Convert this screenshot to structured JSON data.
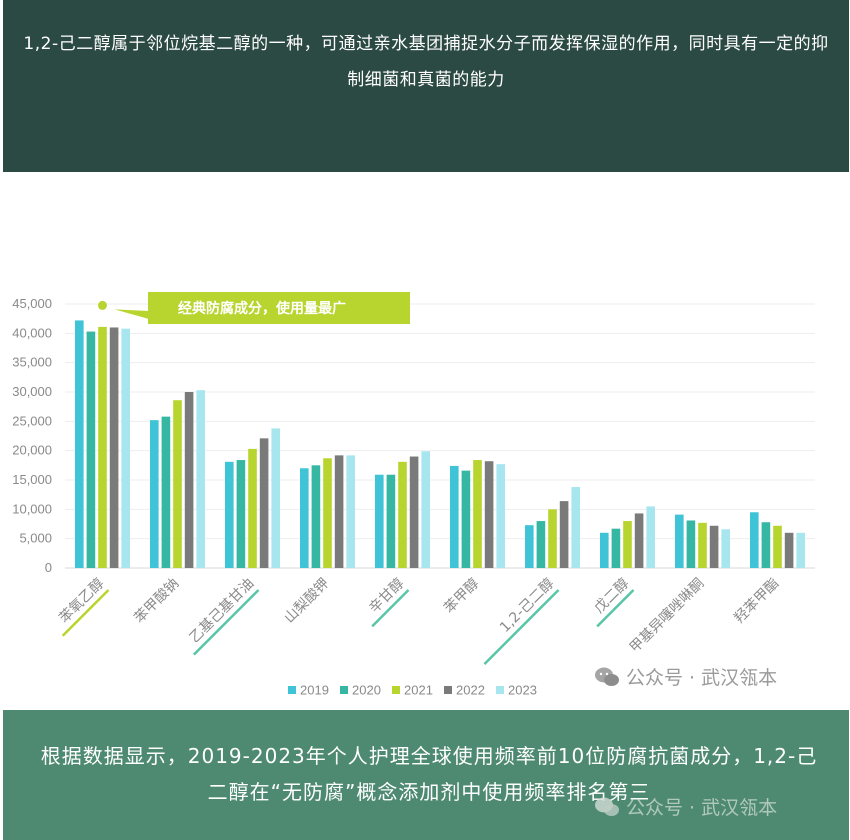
{
  "header": {
    "text": "1,2-己二醇属于邻位烷基二醇的一种，可通过亲水基团捕捉水分子而发挥保湿的作用，同时具有一定的抑制细菌和真菌的能力"
  },
  "footer": {
    "text": "根据数据显示，2019-2023年个人护理全球使用频率前10位防腐抗菌成分，1,2-己二醇在“无防腐”概念添加剂中使用频率排名第三"
  },
  "watermark": {
    "text": "公众号 · 武汉瓴本",
    "icon": "wechat-icon"
  },
  "chart_data": {
    "type": "bar",
    "categories": [
      "苯氧乙醇",
      "苯甲酸钠",
      "乙基己基甘油",
      "山梨酸钾",
      "辛甘醇",
      "苯甲醇",
      "1,2-己二醇",
      "戊二醇",
      "甲基异噻唑啉酮",
      "羟苯甲酯"
    ],
    "highlighted": [
      "苯氧乙醇",
      "乙基己基甘油",
      "辛甘醇",
      "1,2-己二醇",
      "戊二醇"
    ],
    "series": [
      {
        "name": "2019",
        "color": "#3fc3d6",
        "values": [
          42200,
          25200,
          18100,
          17000,
          15900,
          17400,
          7300,
          6000,
          9100,
          9500
        ]
      },
      {
        "name": "2020",
        "color": "#35b7a4",
        "values": [
          40300,
          25800,
          18400,
          17500,
          15900,
          16600,
          8000,
          6700,
          8100,
          7800
        ]
      },
      {
        "name": "2021",
        "color": "#b8d42e",
        "values": [
          41100,
          28600,
          20300,
          18700,
          18100,
          18400,
          10000,
          8000,
          7700,
          7200
        ]
      },
      {
        "name": "2022",
        "color": "#7a7a7a",
        "values": [
          41000,
          30000,
          22100,
          19200,
          19000,
          18200,
          11400,
          9300,
          7200,
          6000
        ]
      },
      {
        "name": "2023",
        "color": "#a8e6ef",
        "values": [
          40800,
          30300,
          23800,
          19200,
          19900,
          17700,
          13800,
          10500,
          6600,
          6000
        ]
      }
    ],
    "yticks": [
      "0",
      "5,000",
      "10,000",
      "15,000",
      "20,000",
      "25,000",
      "30,000",
      "35,000",
      "40,000",
      "45,000"
    ],
    "ylim": [
      0,
      45000
    ],
    "grid": true,
    "legend_position": "bottom",
    "annotation": {
      "text": "经典防腐成分，使用量最广",
      "color": "#b8d42e",
      "category_index": 0
    }
  }
}
